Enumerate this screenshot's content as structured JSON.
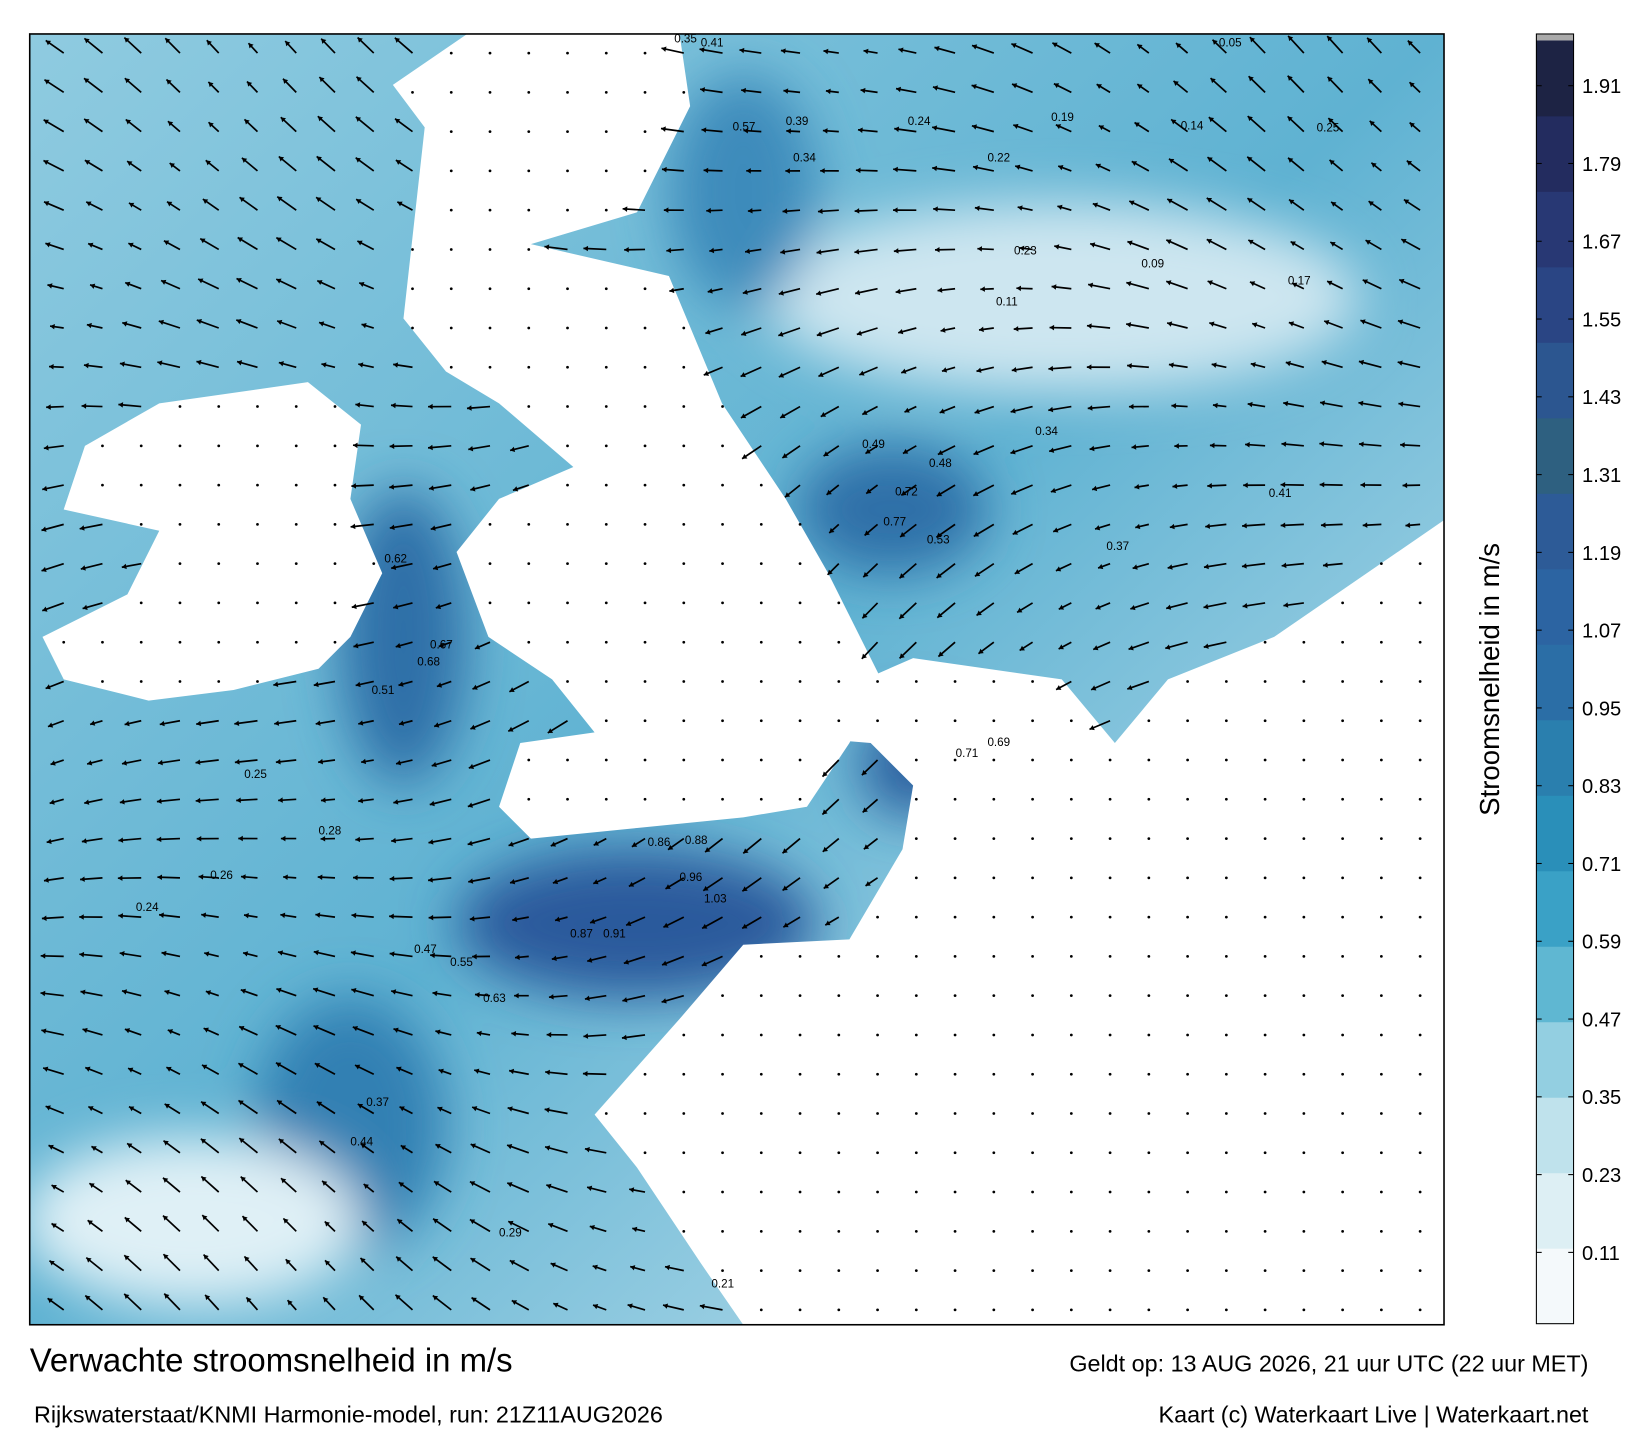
{
  "chart_data": {
    "type": "current-map",
    "title": "Verwachte stroomsnelheid in m/s",
    "subtitle": "Rijkswaterstaat/KNMI Harmonie-model, run: 21Z11AUG2026",
    "valid_time": "Geldt op: 13 AUG 2026, 21 uur UTC (22 uur MET)",
    "credit": "Kaart (c) Waterkaart Live | Waterkaart.net",
    "colorbar": {
      "label": "Stroomsnelheid in m/s",
      "ylim": [
        0,
        1.98
      ],
      "yticks": [
        0.11,
        0.23,
        0.35,
        0.47,
        0.59,
        0.71,
        0.83,
        0.95,
        1.07,
        1.19,
        1.31,
        1.43,
        1.55,
        1.67,
        1.79,
        1.91
      ],
      "colors": [
        "#f4f9fb",
        "#ddeff4",
        "#bfe2ec",
        "#93cfe1",
        "#5fb7d2",
        "#3aa1c6",
        "#2a8fb9",
        "#2a7fae",
        "#2b6ea6",
        "#2c64a2",
        "#2d5b97",
        "#2e6080",
        "#2c5690",
        "#2a4584",
        "#283874",
        "#232c5f",
        "#1d2344"
      ]
    },
    "map_labels": [
      0.35,
      0.41,
      0.57,
      0.39,
      0.34,
      0.24,
      0.22,
      0.19,
      0.14,
      0.25,
      0.09,
      0.11,
      0.23,
      0.49,
      0.72,
      0.77,
      0.53,
      0.34,
      0.41,
      0.37,
      0.68,
      0.67,
      0.51,
      0.62,
      0.86,
      0.88,
      0.96,
      1.03,
      0.87,
      0.91,
      0.63,
      0.55,
      0.47,
      0.25,
      0.26,
      0.24,
      0.44,
      0.37,
      0.29,
      0.21,
      0.05,
      0.17,
      0.28,
      0.48,
      0.71,
      0.69
    ]
  }
}
